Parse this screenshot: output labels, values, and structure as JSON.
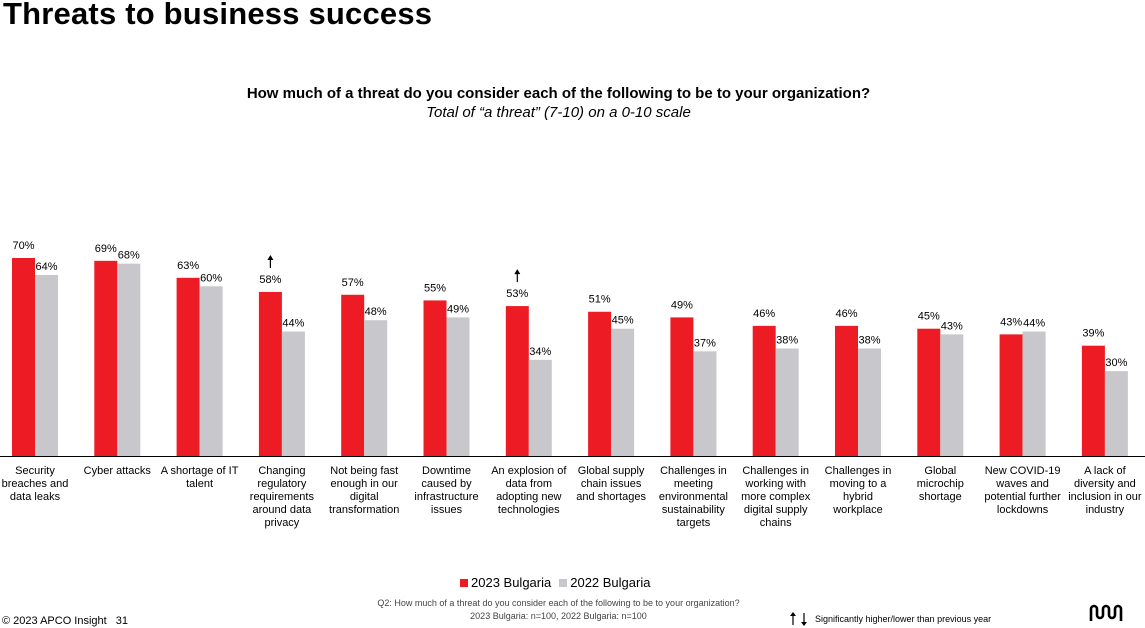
{
  "page": {
    "title": "Threats to business success",
    "copyright": "© 2023 APCO Insight",
    "page_number": "31"
  },
  "note": {
    "question": "Q2: How much of a threat do you consider each of the following to be to your organization?",
    "base": "2023 Bulgaria: n=100, 2022 Bulgaria: n=100"
  },
  "significance": {
    "label": "Significantly higher/lower than previous year"
  },
  "colors": {
    "series_2023": "#ED1C24",
    "series_2022": "#C8C8CC"
  },
  "chart_data": {
    "type": "bar",
    "title": "How much of a threat do you consider each of the following to be to your organization?",
    "subtitle": "Total of “a threat” (7-10) on a 0-10 scale",
    "ylim": [
      0,
      70
    ],
    "grid": false,
    "legend_position": "bottom",
    "categories": [
      "Security breaches and data leaks",
      "Cyber attacks",
      "A shortage of IT talent",
      "Changing regulatory requirements around data privacy",
      "Not being fast enough in our digital transformation",
      "Downtime caused by infrastructure issues",
      "An explosion of data from adopting new technologies",
      "Global supply chain issues and shortages",
      "Challenges in meeting environmental sustainability targets",
      "Challenges in working with more complex digital supply chains",
      "Challenges in moving to a hybrid workplace",
      "Global microchip shortage",
      "New COVID-19 waves and potential further lockdowns",
      "A lack of diversity and inclusion in our industry"
    ],
    "series": [
      {
        "name": "2023 Bulgaria",
        "values": [
          70,
          69,
          63,
          58,
          57,
          55,
          53,
          51,
          49,
          46,
          46,
          45,
          43,
          39
        ]
      },
      {
        "name": "2022 Bulgaria",
        "values": [
          64,
          68,
          60,
          44,
          48,
          49,
          34,
          45,
          37,
          38,
          38,
          43,
          44,
          30
        ]
      }
    ],
    "significant_higher": [
      3,
      6
    ]
  }
}
